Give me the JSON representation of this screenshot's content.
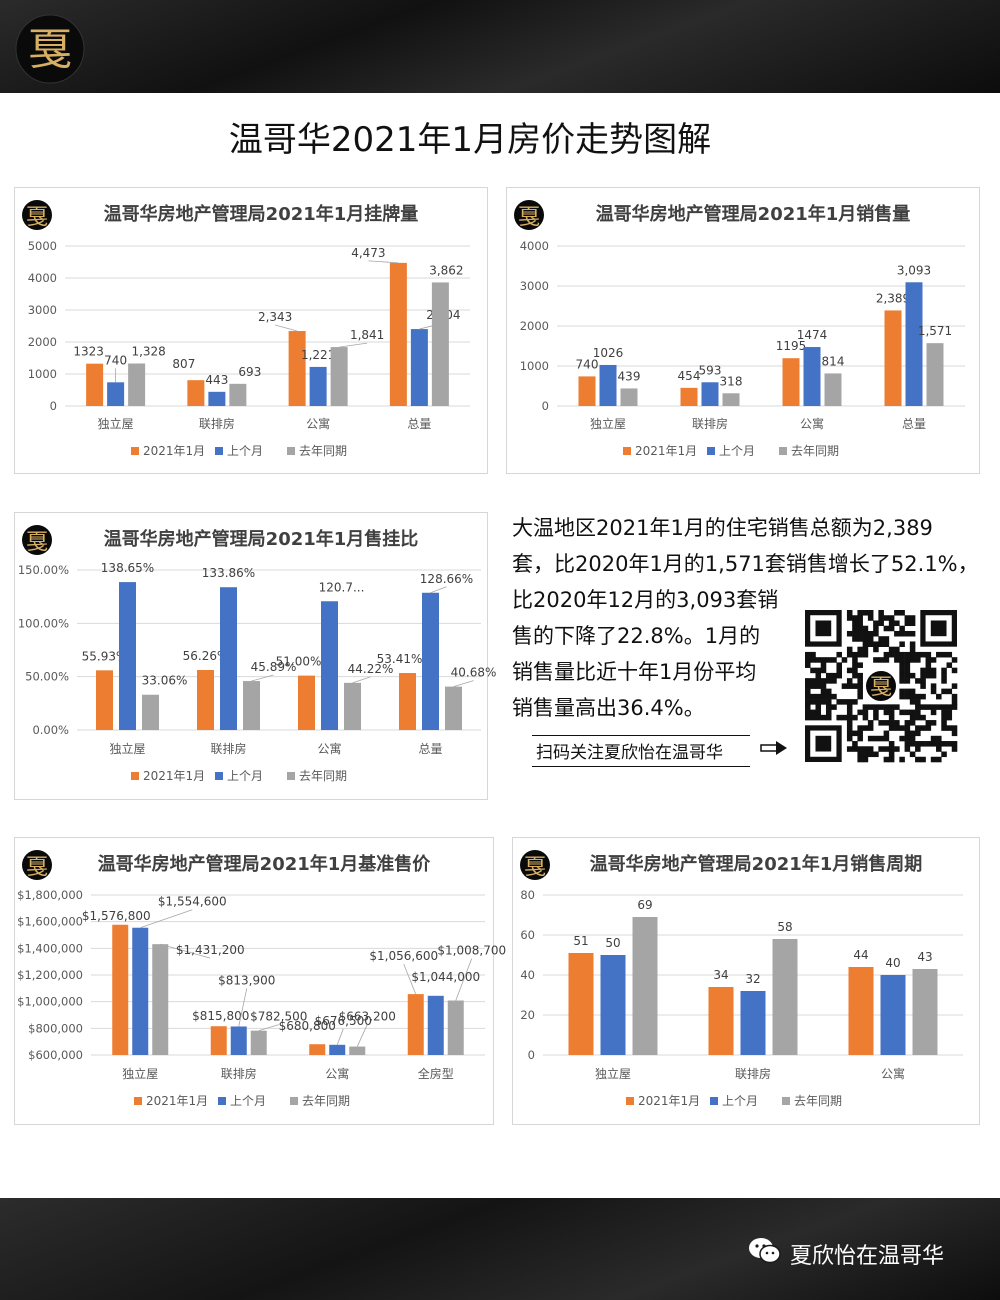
{
  "main_title": "温哥华2021年1月房价走势图解",
  "logo_char": "戛",
  "paragraph": {
    "lines": [
      "大温地区2021年1月的住宅销售总额为2,389",
      "套，比2020年1月的1,571套销售增长了52.1%，",
      "比2020年12月的3,093套销",
      "售的下降了22.8%。1月的",
      "销售量比近十年1月份平均",
      "销售量高出36.4%。"
    ]
  },
  "scan_text": "扫码关注夏欣怡在温哥华",
  "footer_text": "夏欣怡在温哥华",
  "colors": {
    "series1": "#ED7D31",
    "series2": "#4472C4",
    "series3": "#A5A5A5",
    "logo_gold": "#d7b063"
  },
  "legend": [
    "2021年1月",
    "上个月",
    "去年同期"
  ],
  "chart_data": [
    {
      "id": "listings",
      "type": "bar",
      "title": "温哥华房地产管理局2021年1月挂牌量",
      "categories": [
        "独立屋",
        "联排房",
        "公寓",
        "总量"
      ],
      "series": [
        {
          "name": "2021年1月",
          "values": [
            1323,
            807,
            2343,
            4473
          ],
          "labels": [
            "1323",
            "807",
            "2,343",
            "4,473"
          ]
        },
        {
          "name": "上个月",
          "values": [
            740,
            443,
            1221,
            2404
          ],
          "labels": [
            "740",
            "443",
            "1,221",
            "2,404"
          ]
        },
        {
          "name": "去年同期",
          "values": [
            1328,
            693,
            1841,
            3862
          ],
          "labels": [
            "1,328",
            "693",
            "1,841",
            "3,862"
          ]
        }
      ],
      "ylim": [
        0,
        5000
      ],
      "yticks": [
        "0",
        "1000",
        "2000",
        "3000",
        "4000",
        "5000"
      ],
      "legend_position": "bottom"
    },
    {
      "id": "sales",
      "type": "bar",
      "title": "温哥华房地产管理局2021年1月销售量",
      "categories": [
        "独立屋",
        "联排房",
        "公寓",
        "总量"
      ],
      "series": [
        {
          "name": "2021年1月",
          "values": [
            740,
            454,
            1195,
            2389
          ],
          "labels": [
            "740",
            "454",
            "1195",
            "2,389"
          ]
        },
        {
          "name": "上个月",
          "values": [
            1026,
            593,
            1474,
            3093
          ],
          "labels": [
            "1026",
            "593",
            "1474",
            "3,093"
          ]
        },
        {
          "name": "去年同期",
          "values": [
            439,
            318,
            814,
            1571
          ],
          "labels": [
            "439",
            "318",
            "814",
            "1,571"
          ]
        }
      ],
      "ylim": [
        0,
        4000
      ],
      "yticks": [
        "0",
        "1000",
        "2000",
        "3000",
        "4000"
      ],
      "legend_position": "bottom"
    },
    {
      "id": "ratio",
      "type": "bar",
      "title": "温哥华房地产管理局2021年1月售挂比",
      "categories": [
        "独立屋",
        "联排房",
        "公寓",
        "总量"
      ],
      "series": [
        {
          "name": "2021年1月",
          "values": [
            55.93,
            56.26,
            51.0,
            53.41
          ],
          "labels": [
            "55.93%",
            "56.26%",
            "51.00%",
            "53.41%"
          ]
        },
        {
          "name": "上个月",
          "values": [
            138.65,
            133.86,
            120.7,
            128.66
          ],
          "labels": [
            "138.65%",
            "133.86%",
            "120.7...",
            "128.66%"
          ]
        },
        {
          "name": "去年同期",
          "values": [
            33.06,
            45.89,
            44.22,
            40.68
          ],
          "labels": [
            "33.06%",
            "45.89%",
            "44.22%",
            "40.68%"
          ]
        }
      ],
      "ylim": [
        0,
        150
      ],
      "yticks": [
        "0.00%",
        "50.00%",
        "100.00%",
        "150.00%"
      ],
      "legend_position": "bottom"
    },
    {
      "id": "price",
      "type": "bar",
      "title": "温哥华房地产管理局2021年1月基准售价",
      "categories": [
        "独立屋",
        "联排房",
        "公寓",
        "全房型"
      ],
      "series": [
        {
          "name": "2021年1月",
          "values": [
            1576800,
            815800,
            680800,
            1056600
          ],
          "labels": [
            "$1,576,800",
            "$815,800",
            "$680,800",
            "$1,056,600"
          ]
        },
        {
          "name": "上个月",
          "values": [
            1554600,
            813900,
            676500,
            1044000
          ],
          "labels": [
            "$1,554,600",
            "$813,900",
            "$676,500",
            "$1,044,000"
          ]
        },
        {
          "name": "去年同期",
          "values": [
            1431200,
            782500,
            663200,
            1008700
          ],
          "labels": [
            "$1,431,200",
            "$782,500",
            "$663,200",
            "$1,008,700"
          ]
        }
      ],
      "ylim": [
        600000,
        1800000
      ],
      "yticks": [
        "$600,000",
        "$800,000",
        "$1,000,000",
        "$1,200,000",
        "$1,400,000",
        "$1,600,000",
        "$1,800,000"
      ],
      "legend_position": "bottom"
    },
    {
      "id": "days",
      "type": "bar",
      "title": "温哥华房地产管理局2021年1月销售周期",
      "categories": [
        "独立屋",
        "联排房",
        "公寓"
      ],
      "series": [
        {
          "name": "2021年1月",
          "values": [
            51,
            34,
            44
          ],
          "labels": [
            "51",
            "34",
            "44"
          ]
        },
        {
          "name": "上个月",
          "values": [
            50,
            32,
            40
          ],
          "labels": [
            "50",
            "32",
            "40"
          ]
        },
        {
          "name": "去年同期",
          "values": [
            69,
            58,
            43
          ],
          "labels": [
            "69",
            "58",
            "43"
          ]
        }
      ],
      "ylim": [
        0,
        80
      ],
      "yticks": [
        "0",
        "20",
        "40",
        "60",
        "80"
      ],
      "legend_position": "bottom"
    }
  ]
}
